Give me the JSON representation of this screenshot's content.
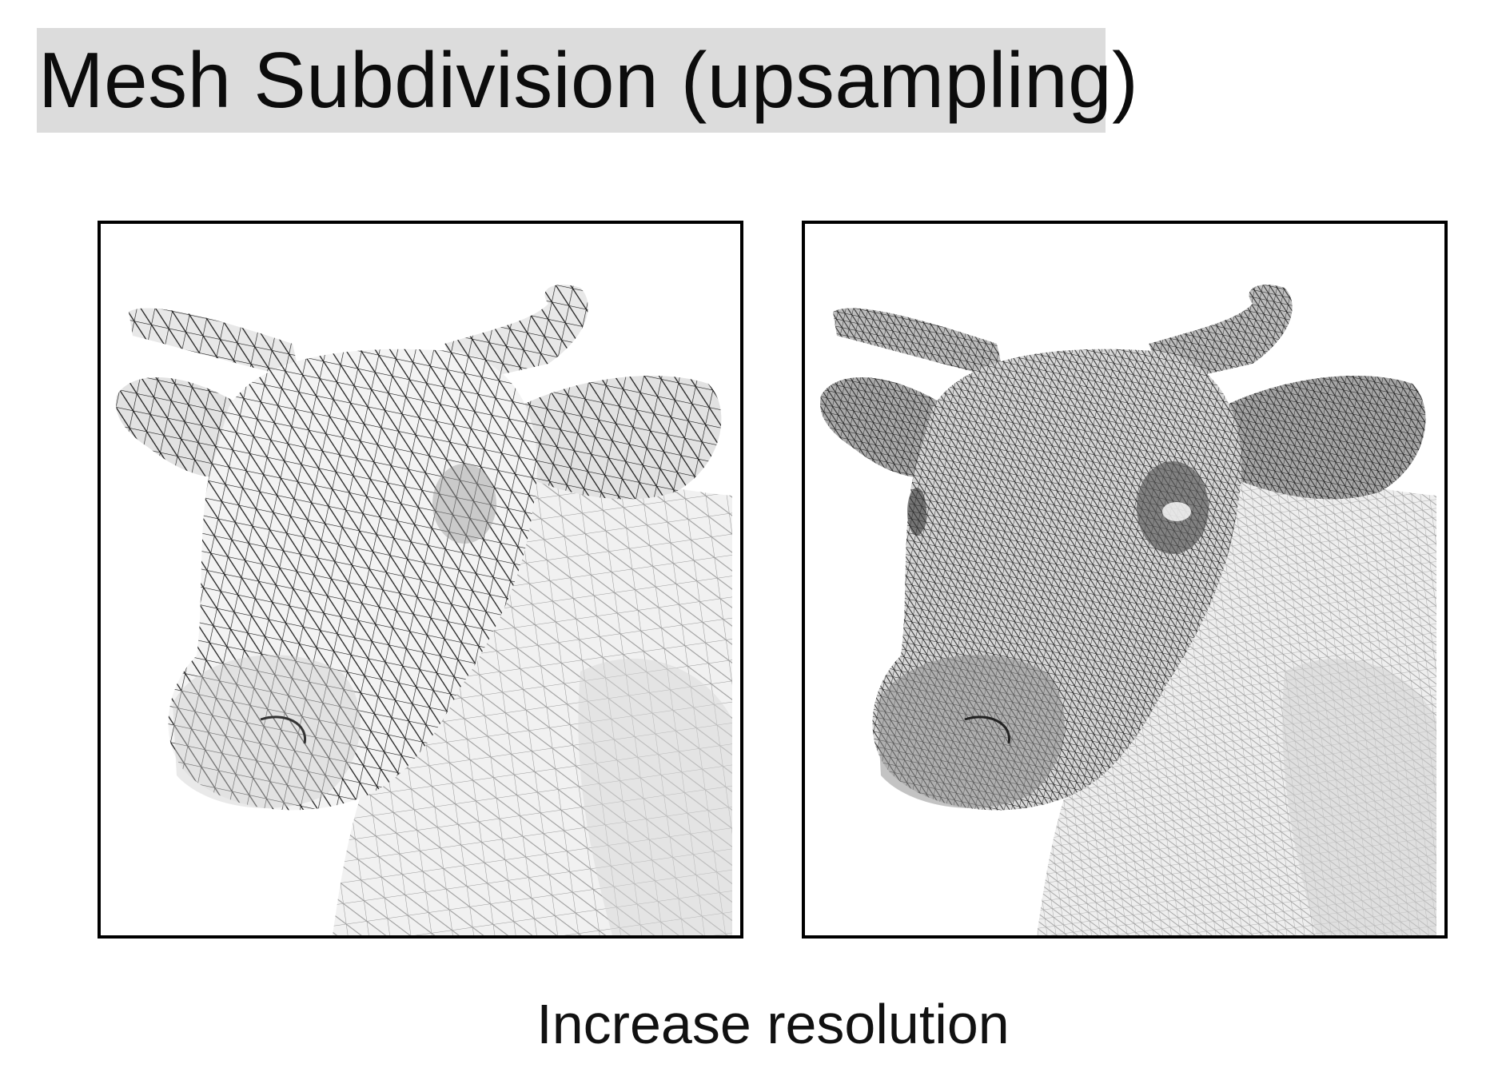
{
  "slide": {
    "title": "Mesh Subdivision (upsampling)",
    "caption": "Increase resolution"
  },
  "panels": [
    {
      "id": "coarse",
      "image": "cow-head-coarse-wireframe-mesh",
      "mesh_density": "low"
    },
    {
      "id": "fine",
      "image": "cow-head-subdivided-wireframe-mesh",
      "mesh_density": "high"
    }
  ],
  "colors": {
    "title_background": "#dcdcdc",
    "frame": "#000000",
    "background": "#ffffff"
  }
}
